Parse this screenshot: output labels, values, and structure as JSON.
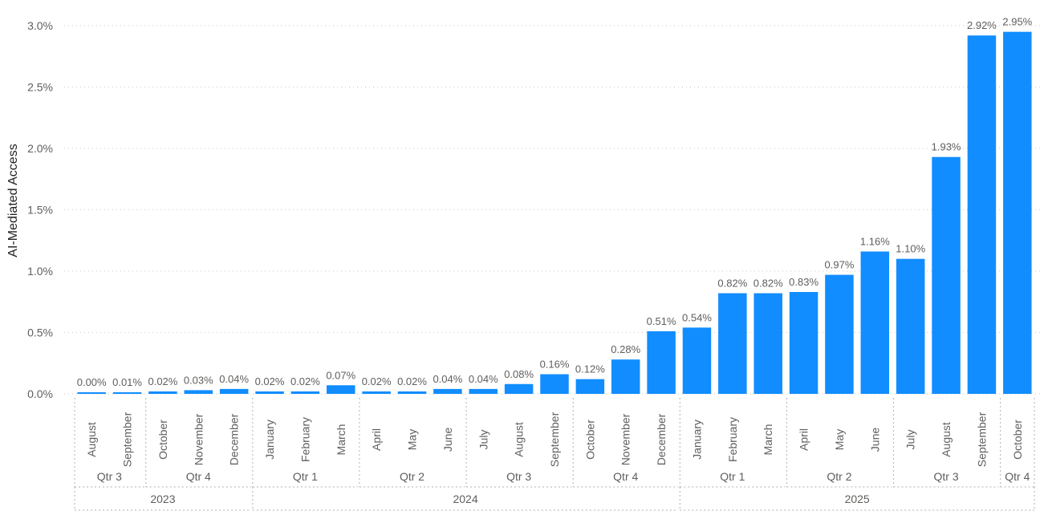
{
  "chart_data": {
    "type": "bar",
    "ylabel": "AI-Mediated Access",
    "ylim": [
      0,
      3.0
    ],
    "yticks": [
      "0.0%",
      "0.5%",
      "1.0%",
      "1.5%",
      "2.0%",
      "2.5%",
      "3.0%"
    ],
    "grid": true,
    "bar_color": "#118DFF",
    "months": [
      "August",
      "September",
      "October",
      "November",
      "December",
      "January",
      "February",
      "March",
      "April",
      "May",
      "June",
      "July",
      "August",
      "September",
      "October",
      "November",
      "December",
      "January",
      "February",
      "March",
      "April",
      "May",
      "June",
      "July",
      "August",
      "September",
      "October"
    ],
    "values": [
      0.0,
      0.01,
      0.02,
      0.03,
      0.04,
      0.02,
      0.02,
      0.07,
      0.02,
      0.02,
      0.04,
      0.04,
      0.08,
      0.16,
      0.12,
      0.28,
      0.51,
      0.54,
      0.82,
      0.82,
      0.83,
      0.97,
      1.16,
      1.1,
      1.93,
      2.92,
      2.95
    ],
    "value_labels": [
      "0.00%",
      "0.01%",
      "0.02%",
      "0.03%",
      "0.04%",
      "0.02%",
      "0.02%",
      "0.07%",
      "0.02%",
      "0.02%",
      "0.04%",
      "0.04%",
      "0.08%",
      "0.16%",
      "0.12%",
      "0.28%",
      "0.51%",
      "0.54%",
      "0.82%",
      "0.82%",
      "0.83%",
      "0.97%",
      "1.16%",
      "1.10%",
      "1.93%",
      "2.92%",
      "2.95%"
    ],
    "quarters": [
      {
        "label": "Qtr 3",
        "start": 0,
        "count": 2
      },
      {
        "label": "Qtr 4",
        "start": 2,
        "count": 3
      },
      {
        "label": "Qtr 1",
        "start": 5,
        "count": 3
      },
      {
        "label": "Qtr 2",
        "start": 8,
        "count": 3
      },
      {
        "label": "Qtr 3",
        "start": 11,
        "count": 3
      },
      {
        "label": "Qtr 4",
        "start": 14,
        "count": 3
      },
      {
        "label": "Qtr 1",
        "start": 17,
        "count": 3
      },
      {
        "label": "Qtr 2",
        "start": 20,
        "count": 3
      },
      {
        "label": "Qtr 3",
        "start": 23,
        "count": 3
      },
      {
        "label": "Qtr 4",
        "start": 26,
        "count": 1
      }
    ],
    "years": [
      {
        "label": "2023",
        "start": 0,
        "count": 5
      },
      {
        "label": "2024",
        "start": 5,
        "count": 12
      },
      {
        "label": "2025",
        "start": 17,
        "count": 10
      }
    ]
  }
}
